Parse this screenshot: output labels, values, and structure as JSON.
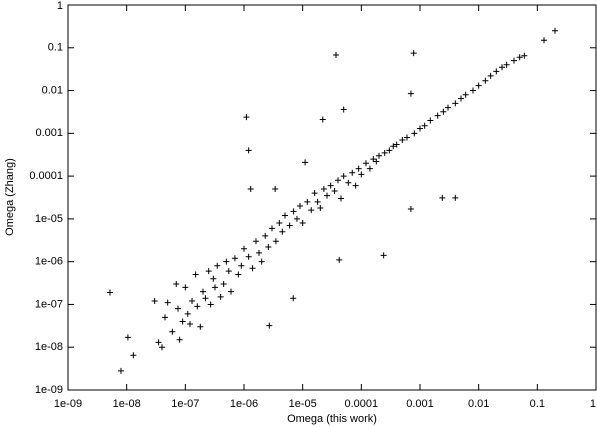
{
  "chart_data": {
    "type": "scatter",
    "x_label": "Omega (this work)",
    "y_label": "Omega (Zhang)",
    "log_x": true,
    "log_y": true,
    "color": "#000000",
    "marker": "+",
    "xlim": [
      1e-09,
      1
    ],
    "ylim": [
      1e-09,
      1
    ],
    "xticks": [
      {
        "value": 1e-09,
        "label": "1e-09"
      },
      {
        "value": 1e-08,
        "label": "1e-08"
      },
      {
        "value": 1e-07,
        "label": "1e-07"
      },
      {
        "value": 1e-06,
        "label": "1e-06"
      },
      {
        "value": 1e-05,
        "label": "1e-05"
      },
      0.0001,
      0.001,
      0.01,
      0.1,
      1
    ],
    "yticks": [
      {
        "value": 1e-09,
        "label": "1e-09"
      },
      {
        "value": 1e-08,
        "label": "1e-08"
      },
      {
        "value": 1e-07,
        "label": "1e-07"
      },
      {
        "value": 1e-06,
        "label": "1e-06"
      },
      {
        "value": 1e-05,
        "label": "1e-05"
      },
      0.0001,
      0.001,
      0.01,
      0.1,
      1
    ],
    "x": [
      5.2e-09,
      1.05e-08,
      1.3e-08,
      8e-09,
      1.1e-06,
      1.2e-06,
      1.3e-06,
      3.7e-05,
      0.00078,
      2.2e-05,
      5e-05,
      0.0007,
      2.7e-06,
      6.9e-06,
      4.2e-05,
      0.00024,
      0.0007,
      0.0024,
      0.004,
      1.1e-05,
      3.4e-06,
      0.2,
      0.13,
      3e-08,
      3.5e-08,
      4e-08,
      4.5e-08,
      5e-08,
      6e-08,
      7e-08,
      7.5e-08,
      8e-08,
      9e-08,
      1e-07,
      1.1e-07,
      1.2e-07,
      1.3e-07,
      1.5e-07,
      1.6e-07,
      1.8e-07,
      2e-07,
      2.2e-07,
      2.5e-07,
      2.7e-07,
      3e-07,
      3.2e-07,
      3.5e-07,
      4e-07,
      4.5e-07,
      5e-07,
      5.5e-07,
      6e-07,
      7e-07,
      8e-07,
      9e-07,
      1e-06,
      1.2e-06,
      1.4e-06,
      1.6e-06,
      1.8e-06,
      2e-06,
      2.3e-06,
      2.6e-06,
      3e-06,
      3.5e-06,
      4e-06,
      4.5e-06,
      5e-06,
      6e-06,
      7e-06,
      8e-06,
      9e-06,
      1e-05,
      1.2e-05,
      1.4e-05,
      1.6e-05,
      1.8e-05,
      2e-05,
      2.3e-05,
      2.6e-05,
      3e-05,
      3.5e-05,
      4e-05,
      4.5e-05,
      5e-05,
      6e-05,
      7e-05,
      8e-05,
      9e-05,
      0.0001,
      0.00012,
      0.00014,
      0.00016,
      0.00018,
      0.0002,
      0.00025,
      0.0003,
      0.00035,
      0.0004,
      0.0005,
      0.0006,
      0.0008,
      0.001,
      0.0012,
      0.0015,
      0.002,
      0.0025,
      0.003,
      0.004,
      0.005,
      0.006,
      0.008,
      0.01,
      0.013,
      0.016,
      0.02,
      0.025,
      0.03,
      0.04,
      0.05,
      0.06
    ],
    "y": [
      1.9e-07,
      1.7e-08,
      6.5e-09,
      2.8e-09,
      0.0024,
      0.0004,
      5e-05,
      0.068,
      0.075,
      0.0021,
      0.0036,
      0.0085,
      3.2e-08,
      1.4e-07,
      1.1e-06,
      1.4e-06,
      1.7e-05,
      3.1e-05,
      3.1e-05,
      0.00021,
      5e-05,
      0.25,
      0.15,
      1.2e-07,
      1.3e-08,
      1e-08,
      5e-08,
      1.1e-07,
      2.3e-08,
      3e-07,
      8e-08,
      1.5e-08,
      4e-08,
      2.5e-07,
      6e-08,
      3.5e-08,
      1.2e-07,
      5e-07,
      9e-08,
      3e-08,
      2e-07,
      1.4e-07,
      6e-07,
      1e-07,
      4e-07,
      2.5e-07,
      8e-07,
      1.5e-07,
      3e-07,
      1e-06,
      6e-07,
      2e-07,
      1.2e-06,
      5e-07,
      8e-07,
      2e-06,
      1.3e-06,
      7e-07,
      3e-06,
      1.6e-06,
      1e-06,
      4e-06,
      2.2e-06,
      6e-06,
      3e-06,
      8e-06,
      5e-06,
      1.2e-05,
      7e-06,
      1.5e-05,
      1e-05,
      2e-05,
      8e-06,
      2.5e-05,
      1.6e-05,
      4e-05,
      2.5e-05,
      1.8e-05,
      5e-05,
      3.5e-05,
      6e-05,
      4.5e-05,
      8e-05,
      3e-05,
      0.0001,
      7e-05,
      0.00012,
      6e-05,
      0.00015,
      0.00011,
      0.0002,
      0.00015,
      0.00025,
      0.00022,
      0.0003,
      0.00035,
      0.0004,
      0.0005,
      0.00055,
      0.0007,
      0.0008,
      0.001,
      0.0013,
      0.0015,
      0.002,
      0.0026,
      0.0032,
      0.004,
      0.005,
      0.0065,
      0.008,
      0.01,
      0.013,
      0.017,
      0.022,
      0.028,
      0.035,
      0.04,
      0.05,
      0.06,
      0.065
    ]
  }
}
